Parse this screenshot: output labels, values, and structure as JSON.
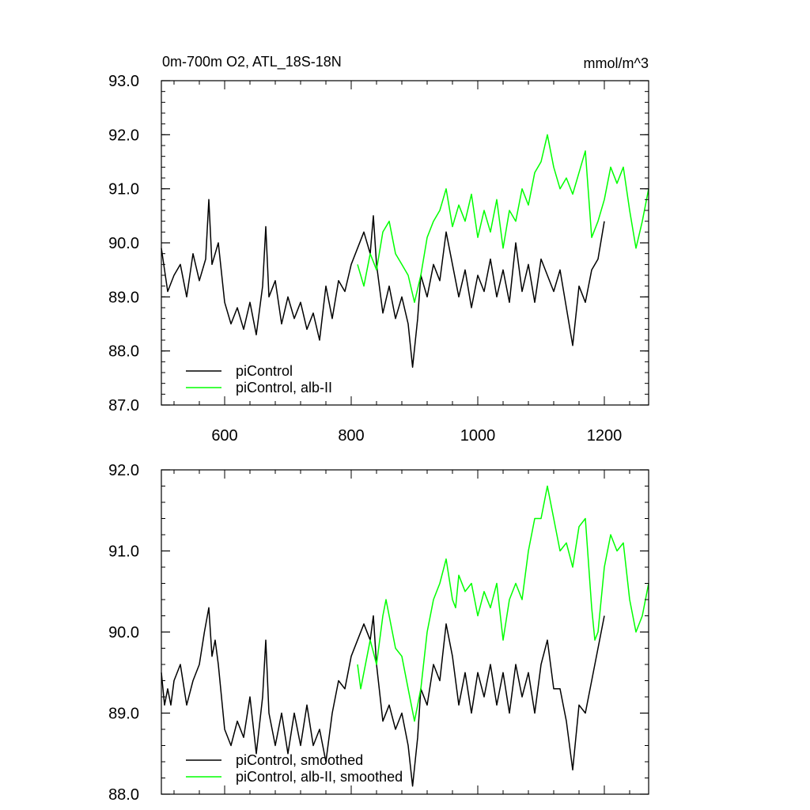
{
  "chart_data": [
    {
      "type": "line",
      "title": "0m-700m O2, ATL_18S-18N",
      "units": "mmol/m^3",
      "xlim": [
        500,
        1270
      ],
      "ylim": [
        87.0,
        93.0
      ],
      "xticks": [
        600,
        800,
        1000,
        1200
      ],
      "xtick_labels": [
        "600",
        "800",
        "1000",
        "1200"
      ],
      "yticks": [
        87.0,
        88.0,
        89.0,
        90.0,
        91.0,
        92.0,
        93.0
      ],
      "ytick_labels": [
        "87.0",
        "88.0",
        "89.0",
        "90.0",
        "91.0",
        "92.0",
        "93.0"
      ],
      "grid": false,
      "legend_position": "bottom-left",
      "series": [
        {
          "name": "piControl",
          "color": "#000000",
          "x": [
            500,
            510,
            520,
            530,
            540,
            550,
            560,
            570,
            575,
            580,
            590,
            600,
            610,
            620,
            630,
            640,
            650,
            660,
            665,
            670,
            680,
            690,
            700,
            710,
            720,
            730,
            740,
            750,
            760,
            770,
            780,
            790,
            800,
            810,
            820,
            830,
            835,
            840,
            850,
            860,
            870,
            880,
            890,
            897,
            905,
            910,
            920,
            930,
            940,
            950,
            960,
            970,
            980,
            990,
            1000,
            1010,
            1020,
            1030,
            1040,
            1050,
            1060,
            1070,
            1080,
            1090,
            1100,
            1110,
            1120,
            1130,
            1140,
            1150,
            1160,
            1170,
            1180,
            1190,
            1200
          ],
          "y": [
            89.9,
            89.1,
            89.4,
            89.6,
            89.0,
            89.8,
            89.3,
            89.7,
            90.8,
            89.6,
            90.0,
            88.9,
            88.5,
            88.8,
            88.4,
            88.9,
            88.3,
            89.2,
            90.3,
            89.0,
            89.3,
            88.5,
            89.0,
            88.6,
            88.9,
            88.4,
            88.7,
            88.2,
            89.2,
            88.6,
            89.3,
            89.1,
            89.6,
            89.9,
            90.2,
            89.8,
            90.5,
            89.6,
            88.7,
            89.2,
            88.6,
            89.0,
            88.5,
            87.7,
            88.6,
            89.4,
            89.0,
            89.6,
            89.3,
            90.2,
            89.6,
            89.0,
            89.5,
            88.8,
            89.4,
            89.1,
            89.7,
            89.0,
            89.5,
            88.9,
            90.0,
            89.1,
            89.6,
            88.9,
            89.7,
            89.4,
            89.1,
            89.5,
            88.8,
            88.1,
            89.2,
            88.9,
            89.5,
            89.7,
            90.4
          ]
        },
        {
          "name": "piControl, alb-II",
          "color": "#00ff00",
          "x": [
            810,
            820,
            830,
            840,
            850,
            860,
            870,
            880,
            890,
            900,
            910,
            920,
            930,
            940,
            950,
            960,
            970,
            980,
            990,
            1000,
            1010,
            1020,
            1030,
            1040,
            1050,
            1060,
            1070,
            1080,
            1090,
            1100,
            1110,
            1120,
            1130,
            1140,
            1150,
            1160,
            1170,
            1180,
            1190,
            1200,
            1210,
            1220,
            1230,
            1240,
            1250,
            1260,
            1270
          ],
          "y": [
            89.6,
            89.2,
            89.8,
            89.5,
            90.2,
            90.4,
            89.8,
            89.6,
            89.4,
            88.9,
            89.4,
            90.1,
            90.4,
            90.6,
            91.0,
            90.3,
            90.7,
            90.4,
            90.9,
            90.1,
            90.6,
            90.2,
            90.8,
            89.9,
            90.6,
            90.4,
            91.0,
            90.7,
            91.3,
            91.5,
            92.0,
            91.4,
            91.0,
            91.2,
            90.9,
            91.3,
            91.7,
            90.1,
            90.4,
            90.8,
            91.4,
            91.1,
            91.4,
            90.6,
            89.9,
            90.4,
            91.0
          ]
        }
      ]
    },
    {
      "type": "line",
      "xlim": [
        500,
        1270
      ],
      "ylim": [
        88.0,
        92.0
      ],
      "xticks": [
        600,
        800,
        1000,
        1200
      ],
      "yticks": [
        88.0,
        89.0,
        90.0,
        91.0,
        92.0
      ],
      "ytick_labels": [
        "88.0",
        "89.0",
        "90.0",
        "91.0",
        "92.0"
      ],
      "grid": false,
      "legend_position": "bottom-left",
      "series": [
        {
          "name": "piControl, smoothed",
          "color": "#000000",
          "x": [
            500,
            505,
            510,
            515,
            520,
            530,
            540,
            550,
            560,
            568,
            575,
            580,
            585,
            590,
            600,
            610,
            620,
            630,
            640,
            650,
            660,
            665,
            670,
            680,
            690,
            700,
            710,
            720,
            730,
            740,
            750,
            760,
            770,
            780,
            790,
            800,
            810,
            820,
            830,
            835,
            840,
            850,
            860,
            870,
            880,
            890,
            897,
            905,
            910,
            920,
            930,
            940,
            950,
            960,
            970,
            980,
            990,
            1000,
            1010,
            1020,
            1030,
            1040,
            1050,
            1060,
            1070,
            1080,
            1090,
            1100,
            1110,
            1120,
            1130,
            1140,
            1150,
            1160,
            1170,
            1180,
            1190,
            1200
          ],
          "y": [
            89.5,
            89.1,
            89.3,
            89.1,
            89.4,
            89.6,
            89.1,
            89.4,
            89.6,
            90.0,
            90.3,
            89.7,
            89.9,
            89.6,
            88.8,
            88.6,
            88.9,
            88.7,
            89.2,
            88.5,
            89.2,
            89.9,
            89.0,
            88.6,
            89.0,
            88.5,
            89.0,
            88.6,
            89.1,
            88.6,
            88.8,
            88.4,
            89.0,
            89.4,
            89.3,
            89.7,
            89.9,
            90.1,
            89.9,
            90.2,
            89.6,
            88.9,
            89.1,
            88.8,
            89.0,
            88.6,
            88.1,
            88.7,
            89.3,
            89.1,
            89.6,
            89.4,
            90.1,
            89.7,
            89.1,
            89.5,
            89.0,
            89.5,
            89.2,
            89.6,
            89.1,
            89.5,
            89.0,
            89.6,
            89.2,
            89.5,
            89.0,
            89.6,
            89.9,
            89.3,
            89.3,
            88.9,
            88.3,
            89.1,
            89.0,
            89.4,
            89.8,
            90.2
          ]
        },
        {
          "name": "piControl, alb-II, smoothed",
          "color": "#00ff00",
          "x": [
            810,
            815,
            820,
            830,
            840,
            850,
            855,
            860,
            870,
            880,
            890,
            900,
            910,
            920,
            930,
            940,
            950,
            960,
            965,
            970,
            980,
            990,
            1000,
            1010,
            1020,
            1030,
            1040,
            1050,
            1060,
            1070,
            1080,
            1090,
            1100,
            1110,
            1120,
            1130,
            1140,
            1150,
            1160,
            1170,
            1180,
            1185,
            1190,
            1200,
            1210,
            1220,
            1230,
            1240,
            1250,
            1260,
            1270
          ],
          "y": [
            89.6,
            89.3,
            89.5,
            89.9,
            89.6,
            90.2,
            90.4,
            90.2,
            89.8,
            89.7,
            89.3,
            88.9,
            89.3,
            90.0,
            90.4,
            90.6,
            90.9,
            90.4,
            90.3,
            90.7,
            90.5,
            90.6,
            90.2,
            90.5,
            90.3,
            90.6,
            89.9,
            90.4,
            90.6,
            90.4,
            91.0,
            91.4,
            91.4,
            91.8,
            91.4,
            91.0,
            91.1,
            90.8,
            91.3,
            91.4,
            90.3,
            89.9,
            90.0,
            90.8,
            91.2,
            91.0,
            91.1,
            90.4,
            90.0,
            90.2,
            90.6
          ]
        }
      ]
    }
  ]
}
